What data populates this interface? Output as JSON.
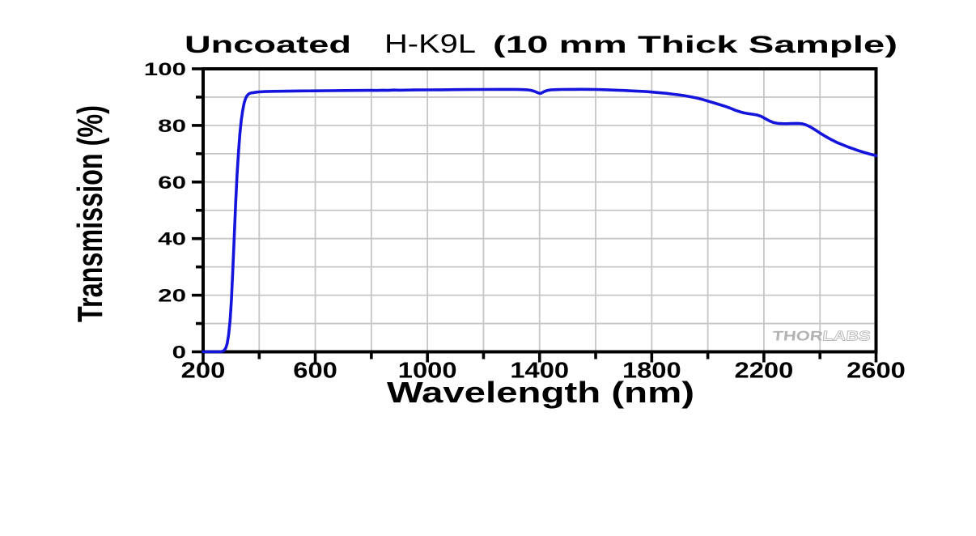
{
  "title": {
    "part1": "Uncoated",
    "part2": "H-K9L",
    "part3": "(10 mm Thick Sample)"
  },
  "watermark": {
    "brand_part1": "THOR",
    "brand_part2": "LABS"
  },
  "colors": {
    "curve": "#1414dd",
    "axis": "#000000",
    "grid": "#c6c6c6",
    "tick_text": "#000000",
    "watermark_solid": "#b3b3b6",
    "watermark_outline": "#bababd",
    "background": "#ffffff"
  },
  "chart_data": {
    "type": "line",
    "title": "Uncoated  H-K9L  (10 mm Thick Sample)",
    "xlabel": "Wavelength (nm)",
    "ylabel": "Transmission (%)",
    "xlim": [
      200,
      2600
    ],
    "ylim": [
      0,
      100
    ],
    "x_major_ticks": [
      200,
      600,
      1000,
      1400,
      1800,
      2200,
      2600
    ],
    "x_minor_ticks": [
      400,
      800,
      1200,
      1600,
      2000,
      2400
    ],
    "y_major_ticks": [
      0,
      20,
      40,
      60,
      80,
      100
    ],
    "y_minor_ticks": [
      10,
      30,
      50,
      70,
      90
    ],
    "x_tick_labels": [
      "200",
      "600",
      "1000",
      "1400",
      "1800",
      "2200",
      "2600"
    ],
    "y_tick_labels": [
      "0",
      "20",
      "40",
      "60",
      "80",
      "100"
    ],
    "grid": "on",
    "legend": "none",
    "series": [
      {
        "name": "Transmission of uncoated H-K9L, 10 mm thick sample",
        "points": [
          [
            200,
            0
          ],
          [
            240,
            0
          ],
          [
            258,
            0
          ],
          [
            264,
            0.05
          ],
          [
            270,
            0.2
          ],
          [
            276,
            0.6
          ],
          [
            281,
            1.4
          ],
          [
            286,
            3.0
          ],
          [
            291,
            6.0
          ],
          [
            296,
            11.0
          ],
          [
            301,
            18.5
          ],
          [
            306,
            29.0
          ],
          [
            311,
            41.0
          ],
          [
            316,
            52.5
          ],
          [
            321,
            62.5
          ],
          [
            326,
            70.5
          ],
          [
            331,
            77.0
          ],
          [
            336,
            81.8
          ],
          [
            341,
            85.3
          ],
          [
            346,
            87.8
          ],
          [
            351,
            89.4
          ],
          [
            356,
            90.4
          ],
          [
            361,
            91.0
          ],
          [
            366,
            91.3
          ],
          [
            372,
            91.5
          ],
          [
            380,
            91.6
          ],
          [
            390,
            91.75
          ],
          [
            400,
            91.85
          ],
          [
            420,
            91.95
          ],
          [
            450,
            92.05
          ],
          [
            500,
            92.1
          ],
          [
            550,
            92.18
          ],
          [
            600,
            92.22
          ],
          [
            650,
            92.28
          ],
          [
            700,
            92.32
          ],
          [
            750,
            92.36
          ],
          [
            800,
            92.4
          ],
          [
            820,
            92.36
          ],
          [
            840,
            92.46
          ],
          [
            860,
            92.4
          ],
          [
            880,
            92.5
          ],
          [
            900,
            92.45
          ],
          [
            950,
            92.52
          ],
          [
            1000,
            92.56
          ],
          [
            1050,
            92.6
          ],
          [
            1100,
            92.65
          ],
          [
            1150,
            92.68
          ],
          [
            1200,
            92.7
          ],
          [
            1250,
            92.72
          ],
          [
            1300,
            92.72
          ],
          [
            1330,
            92.68
          ],
          [
            1355,
            92.58
          ],
          [
            1370,
            92.4
          ],
          [
            1380,
            92.1
          ],
          [
            1390,
            91.7
          ],
          [
            1396,
            91.45
          ],
          [
            1401,
            91.32
          ],
          [
            1406,
            91.4
          ],
          [
            1415,
            91.9
          ],
          [
            1425,
            92.3
          ],
          [
            1440,
            92.55
          ],
          [
            1460,
            92.65
          ],
          [
            1480,
            92.7
          ],
          [
            1500,
            92.72
          ],
          [
            1520,
            92.74
          ],
          [
            1550,
            92.75
          ],
          [
            1580,
            92.73
          ],
          [
            1600,
            92.7
          ],
          [
            1630,
            92.62
          ],
          [
            1660,
            92.5
          ],
          [
            1700,
            92.35
          ],
          [
            1740,
            92.15
          ],
          [
            1780,
            91.95
          ],
          [
            1820,
            91.62
          ],
          [
            1850,
            91.35
          ],
          [
            1880,
            91.0
          ],
          [
            1900,
            90.75
          ],
          [
            1920,
            90.45
          ],
          [
            1940,
            90.1
          ],
          [
            1960,
            89.7
          ],
          [
            1980,
            89.2
          ],
          [
            2000,
            88.6
          ],
          [
            2020,
            88.0
          ],
          [
            2040,
            87.4
          ],
          [
            2060,
            86.8
          ],
          [
            2080,
            86.1
          ],
          [
            2100,
            85.3
          ],
          [
            2115,
            84.8
          ],
          [
            2130,
            84.4
          ],
          [
            2145,
            84.15
          ],
          [
            2160,
            83.95
          ],
          [
            2175,
            83.7
          ],
          [
            2190,
            83.2
          ],
          [
            2205,
            82.4
          ],
          [
            2220,
            81.6
          ],
          [
            2235,
            81.0
          ],
          [
            2250,
            80.72
          ],
          [
            2265,
            80.62
          ],
          [
            2280,
            80.6
          ],
          [
            2300,
            80.66
          ],
          [
            2320,
            80.72
          ],
          [
            2335,
            80.6
          ],
          [
            2350,
            80.2
          ],
          [
            2365,
            79.5
          ],
          [
            2380,
            78.6
          ],
          [
            2400,
            77.3
          ],
          [
            2420,
            76.1
          ],
          [
            2440,
            75.0
          ],
          [
            2460,
            74.0
          ],
          [
            2480,
            73.2
          ],
          [
            2500,
            72.4
          ],
          [
            2520,
            71.7
          ],
          [
            2540,
            71.0
          ],
          [
            2560,
            70.4
          ],
          [
            2580,
            69.8
          ],
          [
            2600,
            69.3
          ]
        ]
      }
    ]
  }
}
